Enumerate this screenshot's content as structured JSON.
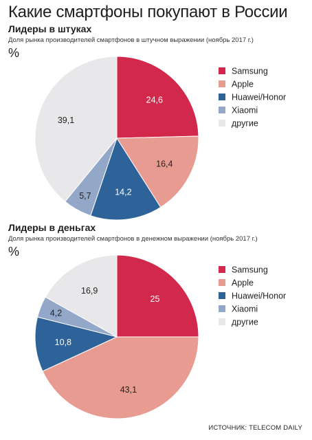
{
  "title": "Какие смартфоны покупают в России",
  "source": "ИСТОЧНИК: TELECOM DAILY",
  "colors": {
    "Samsung": "#d2284b",
    "Apple": "#e89b91",
    "Huawei/Honor": "#2e6399",
    "Xiaomi": "#93a8c8",
    "другие": "#e8e8ea"
  },
  "chart_data": [
    {
      "type": "pie",
      "title": "Лидеры в штуках",
      "subtitle": "Доля рынка производителей смартфонов в штучном выражении (ноябрь 2017 г.)",
      "unit": "%",
      "legend": "right",
      "categories": [
        "Samsung",
        "Apple",
        "Huawei/Honor",
        "Xiaomi",
        "другие"
      ],
      "values": [
        24.6,
        16.4,
        14.2,
        5.7,
        39.1
      ],
      "value_labels": [
        "24,6",
        "16,4",
        "14,2",
        "5,7",
        "39,1"
      ]
    },
    {
      "type": "pie",
      "title": "Лидеры в деньгах",
      "subtitle": "Доля рынка производителей смартфонов в денежном выражении (ноябрь 2017 г.)",
      "unit": "%",
      "legend": "right",
      "categories": [
        "Samsung",
        "Apple",
        "Huawei/Honor",
        "Xiaomi",
        "другие"
      ],
      "values": [
        25,
        43.1,
        10.8,
        4.2,
        16.9
      ],
      "value_labels": [
        "25",
        "43,1",
        "10,8",
        "4,2",
        "16,9"
      ]
    }
  ]
}
